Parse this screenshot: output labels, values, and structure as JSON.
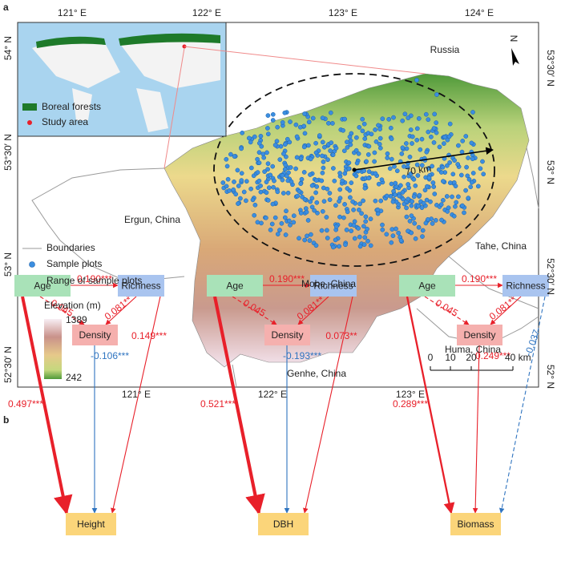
{
  "panel_a": {
    "label": "a",
    "top_longitudes": [
      "121° E",
      "122° E",
      "123° E",
      "124° E"
    ],
    "bottom_longitudes": [
      "121° E",
      "122° E",
      "123° E"
    ],
    "left_latitudes": [
      "54° N",
      "53°30′ N",
      "53° N",
      "52°30′ N"
    ],
    "right_latitudes": [
      "53°30′ N",
      "53° N",
      "52°30′ N",
      "52° N"
    ],
    "places": [
      "Russia",
      "Ergun, China",
      "Tahe, China",
      "Mohe, China",
      "Huma, China",
      "Genhe, China"
    ],
    "distance": "70 km",
    "inset_legend": [
      "Boreal forests",
      "Study area"
    ],
    "legend": [
      "Boundaries",
      "Sample plots",
      "Range of sample plots"
    ],
    "elevation": {
      "title": "Elevation (m)",
      "max": 1389,
      "min": 242
    },
    "scale_bar": [
      "0",
      "10",
      "20",
      "40 km"
    ],
    "north": "N"
  },
  "panel_b": {
    "label": "b",
    "diagrams": [
      {
        "nodes": [
          "Age",
          "Richness",
          "Density",
          "Height"
        ],
        "edges": [
          {
            "label": "0.190***",
            "color": "#e8202a",
            "dashed": false
          },
          {
            "label": "0.045",
            "color": "#e8202a",
            "dashed": true
          },
          {
            "label": "0.081**",
            "color": "#e8202a",
            "dashed": false
          },
          {
            "label": "0.497***",
            "color": "#e8202a",
            "dashed": false
          },
          {
            "label": "-0.106***",
            "color": "#2f74c0",
            "dashed": false
          },
          {
            "label": "0.149***",
            "color": "#e8202a",
            "dashed": false
          }
        ]
      },
      {
        "nodes": [
          "Age",
          "Richness",
          "Density",
          "DBH"
        ],
        "edges": [
          {
            "label": "0.190***",
            "color": "#e8202a",
            "dashed": false
          },
          {
            "label": "0.045",
            "color": "#e8202a",
            "dashed": true
          },
          {
            "label": "0.081**",
            "color": "#e8202a",
            "dashed": false
          },
          {
            "label": "0.521***",
            "color": "#e8202a",
            "dashed": false
          },
          {
            "label": "-0.193***",
            "color": "#2f74c0",
            "dashed": false
          },
          {
            "label": "0.073**",
            "color": "#e8202a",
            "dashed": false
          }
        ]
      },
      {
        "nodes": [
          "Age",
          "Richness",
          "Density",
          "Biomass"
        ],
        "edges": [
          {
            "label": "0.190***",
            "color": "#e8202a",
            "dashed": false
          },
          {
            "label": "0.045",
            "color": "#e8202a",
            "dashed": true
          },
          {
            "label": "0.081**",
            "color": "#e8202a",
            "dashed": false
          },
          {
            "label": "0.289***",
            "color": "#e8202a",
            "dashed": false
          },
          {
            "label": "0.249***",
            "color": "#e8202a",
            "dashed": false
          },
          {
            "label": "-0.037",
            "color": "#2f74c0",
            "dashed": true
          }
        ]
      }
    ]
  }
}
